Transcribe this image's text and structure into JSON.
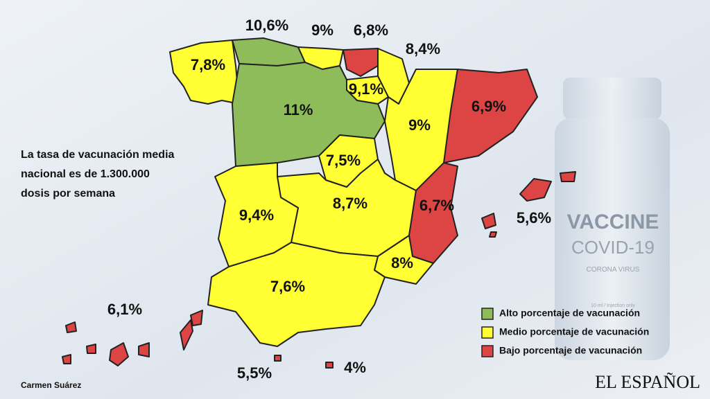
{
  "note": [
    "La tasa de vacunación media",
    "nacional es de 1.300.000",
    "dosis por semana"
  ],
  "regions": [
    {
      "label": "7,8%",
      "color": "#ffff33"
    },
    {
      "label": "10,6%",
      "color": "#8fbc5a"
    },
    {
      "label": "9%",
      "color": "#ffff33"
    },
    {
      "label": "6,8%",
      "color": "#dd4444"
    },
    {
      "label": "8,4%",
      "color": "#ffff33"
    },
    {
      "label": "9,1%",
      "color": "#ffff33"
    },
    {
      "label": "11%",
      "color": "#8fbc5a"
    },
    {
      "label": "9%",
      "color": "#ffff33"
    },
    {
      "label": "6,9%",
      "color": "#dd4444"
    },
    {
      "label": "7,5%",
      "color": "#ffff33"
    },
    {
      "label": "8,7%",
      "color": "#ffff33"
    },
    {
      "label": "9,4%",
      "color": "#ffff33"
    },
    {
      "label": "6,7%",
      "color": "#dd4444"
    },
    {
      "label": "8%",
      "color": "#ffff33"
    },
    {
      "label": "7,6%",
      "color": "#ffff33"
    },
    {
      "label": "5,6%",
      "color": "#dd4444"
    },
    {
      "label": "6,1%",
      "color": "#dd4444"
    },
    {
      "label": "5,5%",
      "color": "#dd4444"
    },
    {
      "label": "4%",
      "color": "#dd4444"
    }
  ],
  "legend": [
    {
      "label": "Alto porcentaje de vacunación",
      "color": "#8fbc5a"
    },
    {
      "label": "Medio porcentaje de vacunación",
      "color": "#ffff33"
    },
    {
      "label": "Bajo porcentaje de vacunación",
      "color": "#dd4444"
    }
  ],
  "vial": {
    "line1": "VACCINE",
    "line2": "COVID-19",
    "line3": "CORONA VIRUS",
    "small": "10 ml / Injection only"
  },
  "author": "Carmen Suárez",
  "logo": "EL ESPAÑOL"
}
